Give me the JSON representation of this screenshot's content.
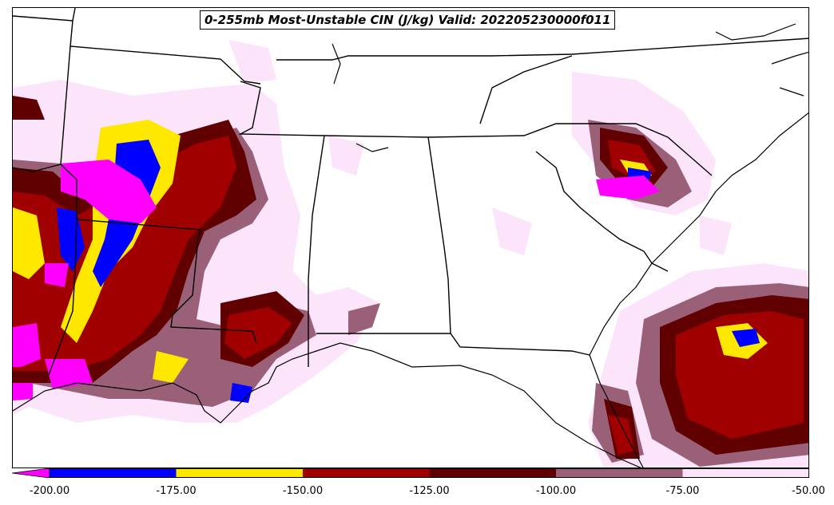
{
  "title": "0-255mb Most-Unstable CIN (J/kg) Valid: 202205230000f011",
  "colorbar": {
    "labels": [
      "-200.00",
      "-175.00",
      "-150.00",
      "-125.00",
      "-100.00",
      "-75.00",
      "-50.00"
    ],
    "colors": [
      "#ff00ff",
      "#0000ff",
      "#ffe800",
      "#a00000",
      "#600000",
      "#9a6078",
      "#fce4fb"
    ]
  }
}
